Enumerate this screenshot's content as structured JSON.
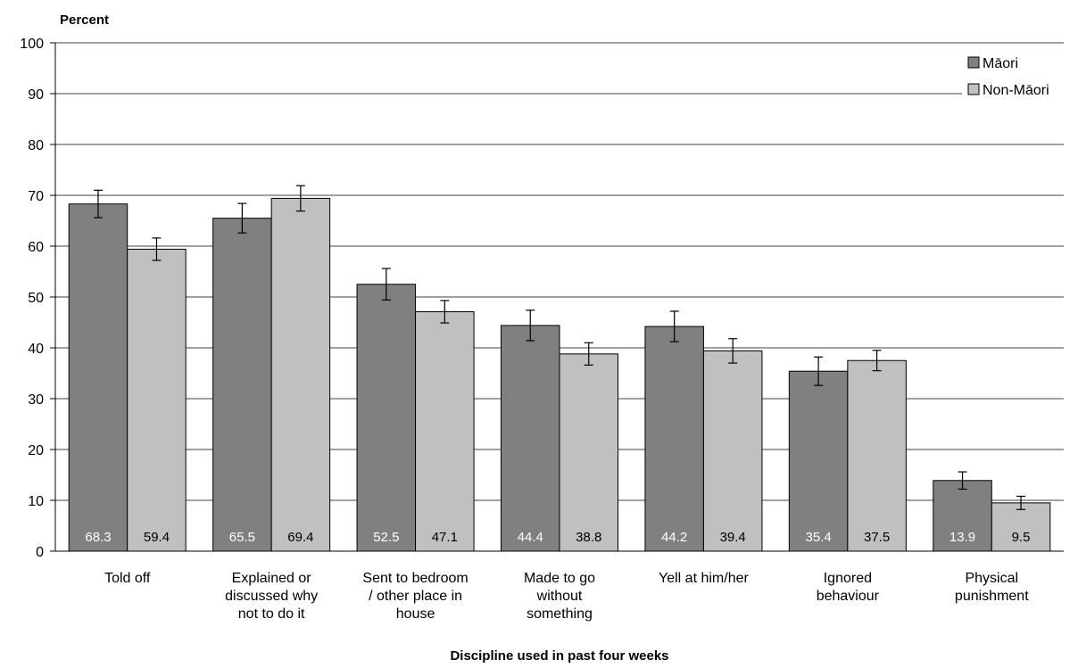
{
  "chart_data": {
    "type": "bar",
    "ylabel": "Percent",
    "xlabel": "Discipline used in past four weeks",
    "ylim": [
      0,
      100
    ],
    "yticks": [
      0,
      10,
      20,
      30,
      40,
      50,
      60,
      70,
      80,
      90,
      100
    ],
    "grid": true,
    "legend_position": "top-right",
    "categories": [
      [
        "Told off"
      ],
      [
        "Explained or",
        "discussed why",
        "not to do it"
      ],
      [
        "Sent to bedroom",
        "/ other place in",
        "house"
      ],
      [
        "Made to go",
        "without",
        "something"
      ],
      [
        "Yell at him/her"
      ],
      [
        "Ignored",
        "behaviour"
      ],
      [
        "Physical",
        "punishment"
      ]
    ],
    "series": [
      {
        "name": "Māori",
        "color": "#808080",
        "values": [
          68.3,
          65.5,
          52.5,
          44.4,
          44.2,
          35.4,
          13.9
        ],
        "labels": [
          "68.3",
          "65.5",
          "52.5",
          "44.4",
          "44.2",
          "35.4",
          "13.9"
        ],
        "error_low": [
          65.6,
          62.6,
          49.4,
          41.4,
          41.2,
          32.6,
          12.2
        ],
        "error_high": [
          71.0,
          68.4,
          55.6,
          47.4,
          47.2,
          38.2,
          15.6
        ]
      },
      {
        "name": "Non-Māori",
        "color": "#c0c0c0",
        "values": [
          59.4,
          69.4,
          47.1,
          38.8,
          39.4,
          37.5,
          9.5
        ],
        "labels": [
          "59.4",
          "69.4",
          "47.1",
          "38.8",
          "39.4",
          "37.5",
          "9.5"
        ],
        "error_low": [
          57.2,
          66.9,
          44.9,
          36.6,
          37.0,
          35.5,
          8.2
        ],
        "error_high": [
          61.6,
          71.9,
          49.3,
          41.0,
          41.8,
          39.5,
          10.8
        ]
      }
    ]
  }
}
